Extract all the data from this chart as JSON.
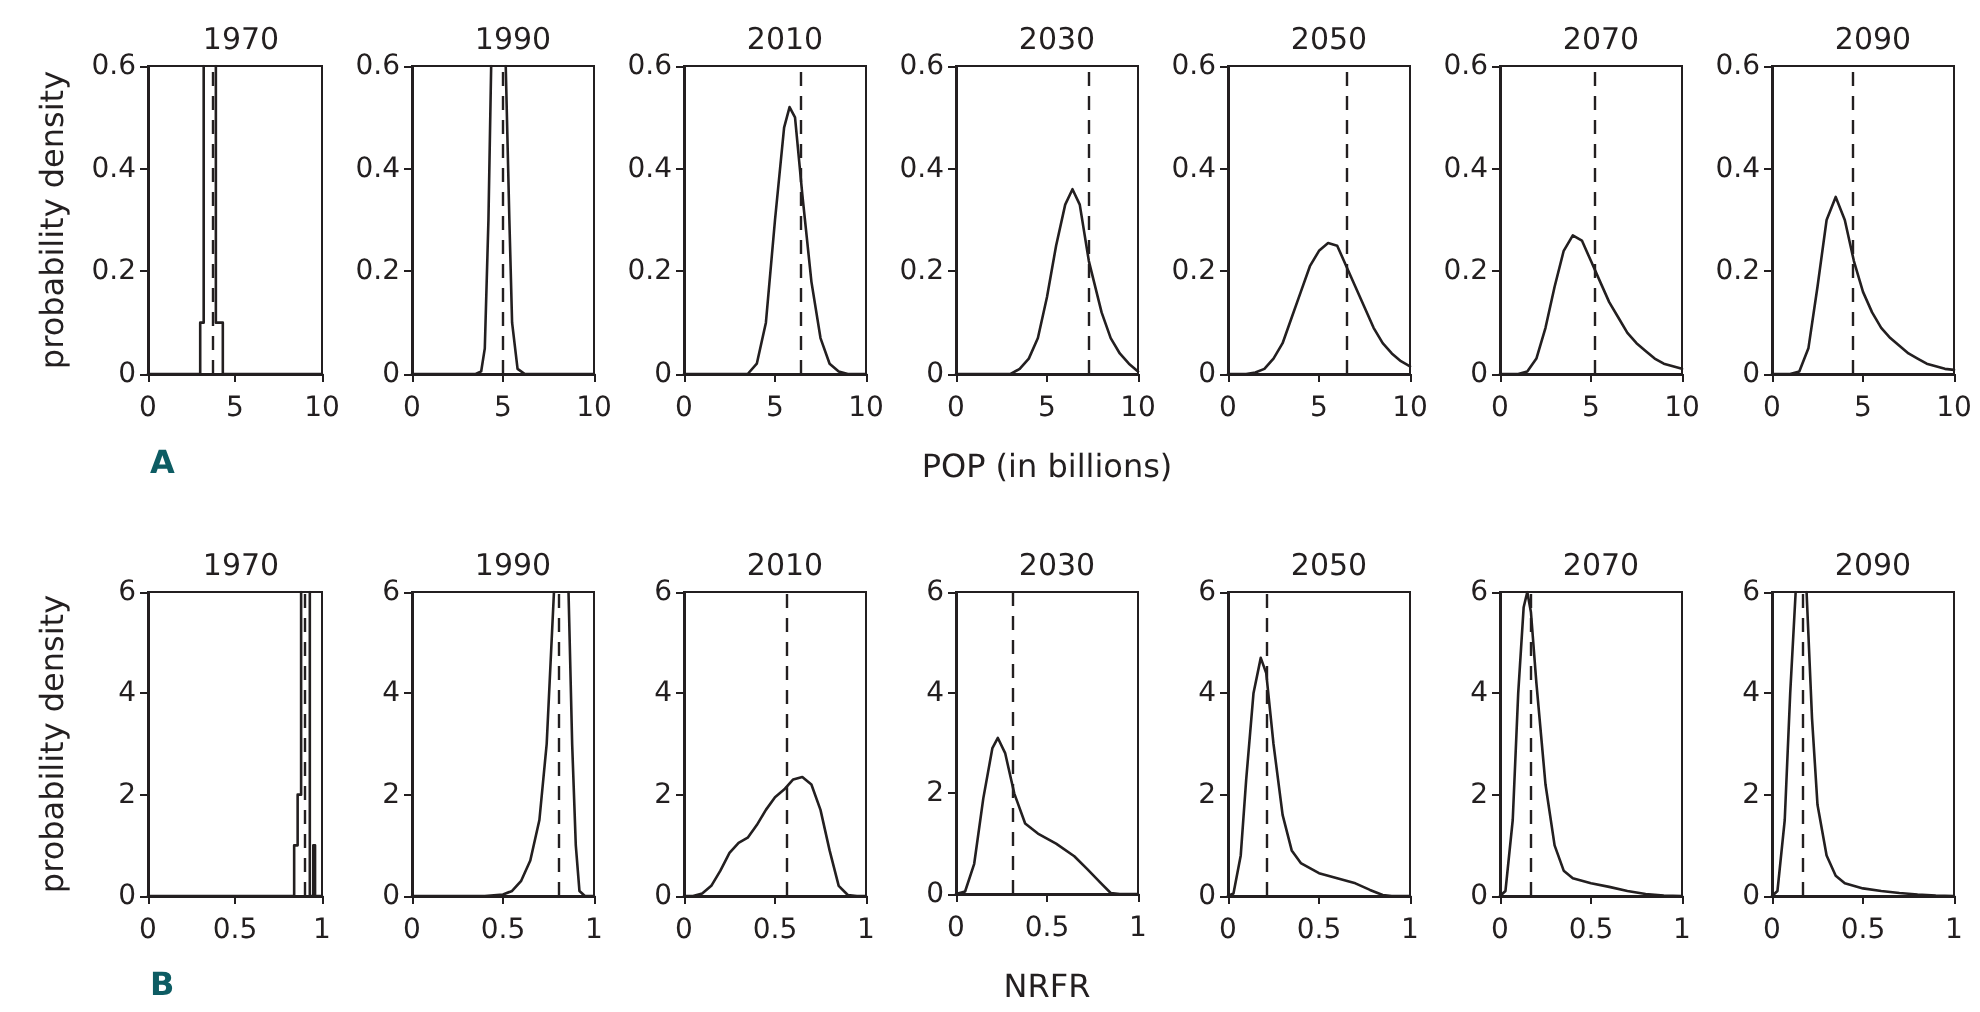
{
  "chart_data": [
    {
      "type": "line",
      "title": "1970",
      "ylabel": "probability density",
      "annotations": [
        "A"
      ],
      "xlim": [
        0,
        10
      ],
      "xticks": [
        0,
        5,
        10
      ],
      "ylim": [
        0,
        0.6
      ],
      "yticks": [
        0,
        0.2,
        0.4,
        0.6
      ],
      "marker": "none",
      "series": [
        {
          "type": "line",
          "color": "#231f20",
          "x": [
            0,
            3.0,
            3.0,
            3.2,
            3.2,
            3.5,
            3.9,
            3.9,
            4.3,
            4.3,
            10
          ],
          "values": [
            0,
            0,
            0.1,
            0.1,
            0.6,
            null,
            0.6,
            0.1,
            0.1,
            0,
            0
          ]
        }
      ],
      "ref_lines": [
        {
          "axis": "x",
          "value": 3.7,
          "color": "#231f20",
          "line_style": "dashed"
        }
      ]
    },
    {
      "type": "line",
      "title": "1990",
      "xlim": [
        0,
        10
      ],
      "xticks": [
        0,
        5,
        10
      ],
      "ylim": [
        0,
        0.6
      ],
      "yticks": [
        0,
        0.2,
        0.4,
        0.6
      ],
      "marker": "none",
      "series": [
        {
          "type": "line",
          "color": "#231f20",
          "x": [
            0,
            3.5,
            3.8,
            4.0,
            4.2,
            4.35,
            4.8,
            5.15,
            5.35,
            5.5,
            5.8,
            6.2,
            10
          ],
          "values": [
            0,
            0,
            0.005,
            0.05,
            0.3,
            0.6,
            null,
            0.6,
            0.3,
            0.1,
            0.01,
            0,
            0
          ]
        }
      ],
      "ref_lines": [
        {
          "axis": "x",
          "value": 5.0,
          "color": "#231f20",
          "line_style": "dashed"
        }
      ]
    },
    {
      "type": "line",
      "title": "2010",
      "xlim": [
        0,
        10
      ],
      "xticks": [
        0,
        5,
        10
      ],
      "ylim": [
        0,
        0.6
      ],
      "yticks": [
        0,
        0.2,
        0.4,
        0.6
      ],
      "marker": "none",
      "series": [
        {
          "type": "line",
          "color": "#231f20",
          "x": [
            0,
            3.5,
            4,
            4.5,
            5,
            5.5,
            5.8,
            6.1,
            6.5,
            7,
            7.5,
            8,
            8.5,
            9,
            10
          ],
          "values": [
            0,
            0,
            0.02,
            0.1,
            0.3,
            0.48,
            0.52,
            0.5,
            0.35,
            0.18,
            0.07,
            0.02,
            0.005,
            0,
            0
          ]
        }
      ],
      "ref_lines": [
        {
          "axis": "x",
          "value": 6.4,
          "color": "#231f20",
          "line_style": "dashed"
        }
      ]
    },
    {
      "type": "line",
      "title": "2030",
      "xlabel": "POP (in billions)",
      "xlim": [
        0,
        10
      ],
      "xticks": [
        0,
        5,
        10
      ],
      "ylim": [
        0,
        0.6
      ],
      "yticks": [
        0,
        0.2,
        0.4,
        0.6
      ],
      "marker": "none",
      "series": [
        {
          "type": "line",
          "color": "#231f20",
          "x": [
            0,
            3,
            3.5,
            4,
            4.5,
            5,
            5.5,
            6,
            6.4,
            6.8,
            7.3,
            8,
            8.5,
            9,
            9.5,
            10
          ],
          "values": [
            0,
            0,
            0.01,
            0.03,
            0.07,
            0.15,
            0.25,
            0.33,
            0.36,
            0.33,
            0.22,
            0.12,
            0.07,
            0.04,
            0.02,
            0.005
          ]
        }
      ],
      "ref_lines": [
        {
          "axis": "x",
          "value": 7.3,
          "color": "#231f20",
          "line_style": "dashed"
        }
      ]
    },
    {
      "type": "line",
      "title": "2050",
      "xlim": [
        0,
        10
      ],
      "xticks": [
        0,
        5,
        10
      ],
      "ylim": [
        0,
        0.6
      ],
      "yticks": [
        0,
        0.2,
        0.4,
        0.6
      ],
      "marker": "none",
      "series": [
        {
          "type": "line",
          "color": "#231f20",
          "x": [
            0,
            1,
            1.5,
            2,
            2.5,
            3,
            3.5,
            4,
            4.5,
            5,
            5.5,
            6,
            6.5,
            7,
            7.5,
            8,
            8.5,
            9,
            9.5,
            10
          ],
          "values": [
            0,
            0,
            0.003,
            0.01,
            0.03,
            0.06,
            0.11,
            0.16,
            0.21,
            0.24,
            0.255,
            0.25,
            0.21,
            0.17,
            0.13,
            0.09,
            0.06,
            0.04,
            0.025,
            0.015
          ]
        }
      ],
      "ref_lines": [
        {
          "axis": "x",
          "value": 6.5,
          "color": "#231f20",
          "line_style": "dashed"
        }
      ]
    },
    {
      "type": "line",
      "title": "2070",
      "xlim": [
        0,
        10
      ],
      "xticks": [
        0,
        5,
        10
      ],
      "ylim": [
        0,
        0.6
      ],
      "yticks": [
        0,
        0.2,
        0.4,
        0.6
      ],
      "marker": "none",
      "series": [
        {
          "type": "line",
          "color": "#231f20",
          "x": [
            0,
            1,
            1.5,
            2,
            2.5,
            3,
            3.5,
            4,
            4.5,
            5,
            5.5,
            6,
            6.5,
            7,
            7.5,
            8,
            8.5,
            9,
            9.5,
            10
          ],
          "values": [
            0,
            0,
            0.005,
            0.03,
            0.09,
            0.17,
            0.24,
            0.27,
            0.26,
            0.22,
            0.18,
            0.14,
            0.11,
            0.08,
            0.06,
            0.045,
            0.03,
            0.02,
            0.015,
            0.01
          ]
        }
      ],
      "ref_lines": [
        {
          "axis": "x",
          "value": 5.2,
          "color": "#231f20",
          "line_style": "dashed"
        }
      ]
    },
    {
      "type": "line",
      "title": "2090",
      "xlim": [
        0,
        10
      ],
      "xticks": [
        0,
        5,
        10
      ],
      "ylim": [
        0,
        0.6
      ],
      "yticks": [
        0,
        0.2,
        0.4,
        0.6
      ],
      "marker": "none",
      "series": [
        {
          "type": "line",
          "color": "#231f20",
          "x": [
            0,
            1,
            1.5,
            2,
            2.5,
            3,
            3.5,
            4,
            4.5,
            5,
            5.5,
            6,
            6.5,
            7,
            7.5,
            8,
            8.5,
            9,
            9.5,
            10
          ],
          "values": [
            0,
            0,
            0.005,
            0.05,
            0.17,
            0.3,
            0.345,
            0.3,
            0.22,
            0.16,
            0.12,
            0.09,
            0.07,
            0.055,
            0.04,
            0.03,
            0.02,
            0.015,
            0.01,
            0.008
          ]
        }
      ],
      "ref_lines": [
        {
          "axis": "x",
          "value": 4.4,
          "color": "#231f20",
          "line_style": "dashed"
        }
      ]
    },
    {
      "type": "line",
      "title": "1970",
      "ylabel": "probability density",
      "annotations": [
        "B"
      ],
      "xlim": [
        0,
        1
      ],
      "xticks": [
        0,
        0.5,
        1
      ],
      "ylim": [
        0,
        6
      ],
      "yticks": [
        0,
        2,
        4,
        6
      ],
      "marker": "none",
      "series": [
        {
          "type": "line",
          "color": "#231f20",
          "x": [
            0,
            0.84,
            0.84,
            0.86,
            0.86,
            0.88,
            0.88,
            0.9,
            0.93,
            0.93,
            0.95,
            0.95,
            0.96,
            0.96,
            1
          ],
          "values": [
            0,
            0,
            1,
            1,
            2,
            2,
            6,
            null,
            6,
            0,
            0,
            1,
            1,
            0,
            0
          ]
        }
      ],
      "ref_lines": [
        {
          "axis": "x",
          "value": 0.9,
          "color": "#231f20",
          "line_style": "dashed"
        }
      ]
    },
    {
      "type": "line",
      "title": "1990",
      "xlim": [
        0,
        1
      ],
      "xticks": [
        0,
        0.5,
        1
      ],
      "ylim": [
        0,
        6
      ],
      "yticks": [
        0,
        2,
        4,
        6
      ],
      "marker": "none",
      "series": [
        {
          "type": "line",
          "color": "#231f20",
          "x": [
            0,
            0.4,
            0.5,
            0.55,
            0.6,
            0.65,
            0.7,
            0.74,
            0.78,
            0.82,
            0.86,
            0.88,
            0.9,
            0.92,
            0.95,
            1
          ],
          "values": [
            0,
            0,
            0.03,
            0.1,
            0.3,
            0.7,
            1.5,
            3,
            6,
            null,
            6,
            3,
            1,
            0.1,
            0,
            0
          ]
        }
      ],
      "ref_lines": [
        {
          "axis": "x",
          "value": 0.8,
          "color": "#231f20",
          "line_style": "dashed"
        }
      ]
    },
    {
      "type": "line",
      "title": "2010",
      "xlim": [
        0,
        1
      ],
      "xticks": [
        0,
        0.5,
        1
      ],
      "ylim": [
        0,
        6
      ],
      "yticks": [
        0,
        2,
        4,
        6
      ],
      "marker": "none",
      "series": [
        {
          "type": "line",
          "color": "#231f20",
          "x": [
            0,
            0.05,
            0.1,
            0.15,
            0.2,
            0.25,
            0.3,
            0.35,
            0.4,
            0.45,
            0.5,
            0.55,
            0.6,
            0.65,
            0.7,
            0.75,
            0.8,
            0.85,
            0.9,
            0.95,
            1
          ],
          "values": [
            0,
            0,
            0.05,
            0.2,
            0.5,
            0.85,
            1.05,
            1.15,
            1.4,
            1.7,
            1.95,
            2.1,
            2.3,
            2.35,
            2.2,
            1.7,
            0.9,
            0.2,
            0.02,
            0,
            0
          ]
        }
      ],
      "ref_lines": [
        {
          "axis": "x",
          "value": 0.56,
          "color": "#231f20",
          "line_style": "dashed"
        }
      ]
    },
    {
      "type": "line",
      "title": "2030",
      "xlabel": "NRFR",
      "xlim": [
        0,
        1
      ],
      "xticks": [
        0,
        0.5,
        1
      ],
      "ylim": [
        0,
        6
      ],
      "yticks": [
        0,
        2,
        4,
        6
      ],
      "marker": "none",
      "series": [
        {
          "type": "line",
          "color": "#231f20",
          "x": [
            0,
            0.05,
            0.1,
            0.15,
            0.2,
            0.23,
            0.27,
            0.32,
            0.38,
            0.45,
            0.55,
            0.65,
            0.72,
            0.8,
            0.85,
            0.9,
            1
          ],
          "values": [
            0,
            0.05,
            0.6,
            1.9,
            2.9,
            3.1,
            2.8,
            2.0,
            1.4,
            1.2,
            1.0,
            0.75,
            0.5,
            0.2,
            0.02,
            0,
            0
          ]
        }
      ],
      "ref_lines": [
        {
          "axis": "x",
          "value": 0.31,
          "color": "#231f20",
          "line_style": "dashed"
        }
      ]
    },
    {
      "type": "line",
      "title": "2050",
      "xlim": [
        0,
        1
      ],
      "xticks": [
        0,
        0.5,
        1
      ],
      "ylim": [
        0,
        6
      ],
      "yticks": [
        0,
        2,
        4,
        6
      ],
      "marker": "none",
      "series": [
        {
          "type": "line",
          "color": "#231f20",
          "x": [
            0,
            0.03,
            0.07,
            0.1,
            0.14,
            0.18,
            0.21,
            0.25,
            0.3,
            0.35,
            0.4,
            0.5,
            0.6,
            0.7,
            0.78,
            0.85,
            0.9,
            1
          ],
          "values": [
            0,
            0.05,
            0.8,
            2.3,
            4.0,
            4.7,
            4.4,
            3.0,
            1.6,
            0.9,
            0.65,
            0.45,
            0.35,
            0.25,
            0.12,
            0.02,
            0,
            0
          ]
        }
      ],
      "ref_lines": [
        {
          "axis": "x",
          "value": 0.21,
          "color": "#231f20",
          "line_style": "dashed"
        }
      ]
    },
    {
      "type": "line",
      "title": "2070",
      "xlim": [
        0,
        1
      ],
      "xticks": [
        0,
        0.5,
        1
      ],
      "ylim": [
        0,
        6
      ],
      "yticks": [
        0,
        2,
        4,
        6
      ],
      "marker": "none",
      "series": [
        {
          "type": "line",
          "color": "#231f20",
          "x": [
            0,
            0.03,
            0.07,
            0.1,
            0.13,
            0.15,
            0.17,
            0.2,
            0.25,
            0.3,
            0.35,
            0.4,
            0.5,
            0.6,
            0.7,
            0.8,
            0.9,
            1
          ],
          "values": [
            0,
            0.1,
            1.5,
            4,
            5.7,
            6,
            5.6,
            4.2,
            2.2,
            1.0,
            0.5,
            0.35,
            0.25,
            0.18,
            0.1,
            0.04,
            0.01,
            0
          ]
        }
      ],
      "ref_lines": [
        {
          "axis": "x",
          "value": 0.17,
          "color": "#231f20",
          "line_style": "dashed"
        }
      ]
    },
    {
      "type": "line",
      "title": "2090",
      "xlim": [
        0,
        1
      ],
      "xticks": [
        0,
        0.5,
        1
      ],
      "ylim": [
        0,
        6
      ],
      "yticks": [
        0,
        2,
        4,
        6
      ],
      "marker": "none",
      "series": [
        {
          "type": "line",
          "color": "#231f20",
          "x": [
            0,
            0.03,
            0.07,
            0.1,
            0.13,
            0.16,
            0.19,
            0.22,
            0.25,
            0.3,
            0.35,
            0.4,
            0.5,
            0.6,
            0.7,
            0.8,
            0.9,
            1
          ],
          "values": [
            0,
            0.1,
            1.5,
            4,
            6,
            null,
            6,
            3.5,
            1.8,
            0.8,
            0.4,
            0.25,
            0.15,
            0.1,
            0.06,
            0.03,
            0.01,
            0
          ]
        }
      ],
      "ref_lines": [
        {
          "axis": "x",
          "value": 0.17,
          "color": "#231f20",
          "line_style": "dashed"
        }
      ]
    }
  ]
}
